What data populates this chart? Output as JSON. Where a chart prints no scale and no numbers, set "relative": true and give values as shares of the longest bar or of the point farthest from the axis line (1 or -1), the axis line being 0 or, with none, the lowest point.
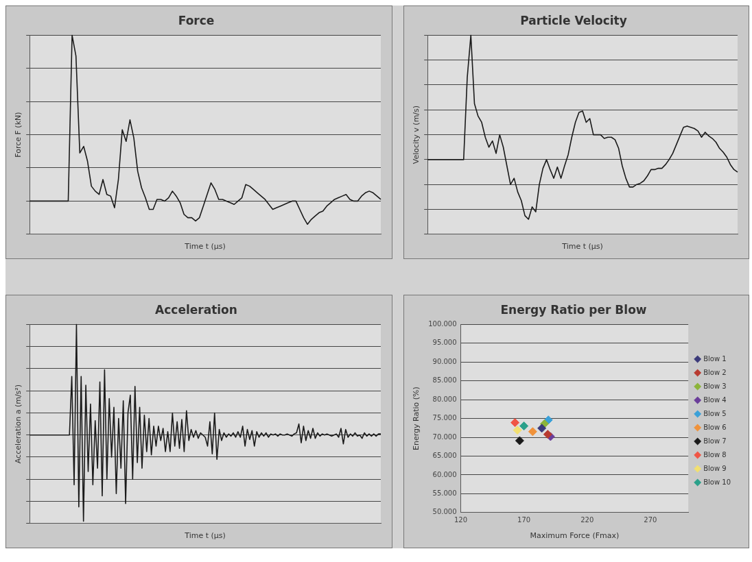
{
  "chart_data": [
    {
      "type": "line",
      "title": "Force",
      "xlabel": "Time t (μs)",
      "ylabel": "Force F (kN)",
      "relative": true,
      "grid": "y",
      "marker": "none",
      "line_style": "solid",
      "tick_labels": false,
      "categories": [
        null,
        null,
        null,
        null,
        null,
        null,
        null,
        null,
        null,
        null,
        null,
        null,
        null,
        null,
        null,
        null,
        null,
        null,
        null,
        null,
        null,
        null,
        null,
        null,
        null,
        null,
        null,
        null,
        null,
        null,
        null,
        null,
        null,
        null,
        null,
        null,
        null,
        null,
        null,
        null,
        null,
        null,
        null,
        null,
        null,
        null,
        null,
        null,
        null,
        null,
        null,
        null,
        null,
        null,
        null,
        null,
        null,
        null,
        null,
        null,
        null,
        null,
        null,
        null,
        null,
        null,
        null,
        null,
        null,
        null,
        null,
        null,
        null,
        null,
        null,
        null,
        null,
        null,
        null,
        null,
        null,
        null,
        null,
        null,
        null,
        null,
        null,
        null,
        null,
        null,
        null,
        null
      ],
      "series": [
        {
          "color": "#1a1a1a",
          "values": [
            0,
            0,
            0,
            0,
            0,
            0,
            0,
            0,
            0,
            0,
            0,
            1.0,
            0.875,
            0.29,
            0.33,
            0.24,
            0.09,
            0.06,
            0.04,
            0.13,
            0.04,
            0.03,
            -0.04,
            0.13,
            0.43,
            0.36,
            0.49,
            0.38,
            0.18,
            0.08,
            0.02,
            -0.05,
            -0.05,
            0.01,
            0.01,
            0,
            0.02,
            0.06,
            0.03,
            -0.01,
            -0.08,
            -0.1,
            -0.1,
            -0.12,
            -0.1,
            -0.03,
            0.04,
            0.11,
            0.07,
            0.01,
            0.01,
            0,
            -0.01,
            -0.02,
            0,
            0.02,
            0.1,
            0.09,
            0.07,
            0.05,
            0.03,
            0.01,
            -0.02,
            -0.05,
            -0.04,
            -0.03,
            -0.02,
            -0.01,
            0,
            0,
            -0.05,
            -0.1,
            -0.14,
            -0.11,
            -0.09,
            -0.07,
            -0.06,
            -0.03,
            -0.01,
            0.01,
            0.02,
            0.03,
            0.04,
            0.01,
            0,
            0,
            0.03,
            0.05,
            0.06,
            0.05,
            0.03,
            0.01
          ]
        }
      ]
    },
    {
      "type": "line",
      "title": "Particle Velocity",
      "xlabel": "Time t (μs)",
      "ylabel": "Velocity v (m/s)",
      "relative": true,
      "grid": "y",
      "marker": "none",
      "line_style": "solid",
      "tick_labels": false,
      "categories": [
        null,
        null,
        null,
        null,
        null,
        null,
        null,
        null,
        null,
        null,
        null,
        null,
        null,
        null,
        null,
        null,
        null,
        null,
        null,
        null,
        null,
        null,
        null,
        null,
        null,
        null,
        null,
        null,
        null,
        null,
        null,
        null,
        null,
        null,
        null,
        null,
        null,
        null,
        null,
        null,
        null,
        null,
        null,
        null,
        null,
        null,
        null,
        null,
        null,
        null,
        null,
        null,
        null,
        null,
        null,
        null,
        null,
        null,
        null,
        null,
        null,
        null,
        null,
        null,
        null,
        null,
        null,
        null,
        null,
        null,
        null,
        null,
        null,
        null,
        null,
        null,
        null,
        null,
        null,
        null,
        null,
        null,
        null,
        null,
        null,
        null,
        null
      ],
      "series": [
        {
          "color": "#1a1a1a",
          "values": [
            0,
            0,
            0,
            0,
            0,
            0,
            0,
            0,
            0,
            0,
            0,
            0.66,
            1.0,
            0.45,
            0.35,
            0.3,
            0.18,
            0.1,
            0.15,
            0.05,
            0.2,
            0.1,
            -0.05,
            -0.2,
            -0.15,
            -0.26,
            -0.33,
            -0.45,
            -0.48,
            -0.38,
            -0.42,
            -0.2,
            -0.07,
            0,
            -0.08,
            -0.15,
            -0.06,
            -0.15,
            -0.05,
            0.04,
            0.18,
            0.3,
            0.38,
            0.39,
            0.3,
            0.33,
            0.2,
            0.2,
            0.2,
            0.17,
            0.18,
            0.18,
            0.16,
            0.09,
            -0.05,
            -0.15,
            -0.22,
            -0.22,
            -0.2,
            -0.19,
            -0.17,
            -0.13,
            -0.08,
            -0.08,
            -0.07,
            -0.07,
            -0.04,
            0,
            0.05,
            0.12,
            0.19,
            0.26,
            0.27,
            0.26,
            0.25,
            0.23,
            0.18,
            0.22,
            0.19,
            0.17,
            0.14,
            0.09,
            0.06,
            0.02,
            -0.04,
            -0.08,
            -0.1
          ]
        }
      ]
    },
    {
      "type": "line",
      "title": "Acceleration",
      "xlabel": "Time t (μs)",
      "ylabel": "Acceleration a (m/s²)",
      "relative": true,
      "grid": "y",
      "marker": "none",
      "line_style": "solid",
      "tick_labels": false,
      "categories": [
        null,
        null,
        null,
        null,
        null,
        null,
        null,
        null,
        null,
        null,
        null,
        null,
        null,
        null,
        null,
        null,
        null,
        null,
        null,
        null,
        null,
        null,
        null,
        null,
        null,
        null,
        null,
        null,
        null,
        null,
        null,
        null,
        null,
        null,
        null,
        null,
        null,
        null,
        null,
        null,
        null,
        null,
        null,
        null,
        null,
        null,
        null,
        null,
        null,
        null,
        null,
        null,
        null,
        null,
        null,
        null,
        null,
        null,
        null,
        null,
        null,
        null,
        null,
        null,
        null,
        null,
        null,
        null,
        null,
        null,
        null,
        null,
        null,
        null,
        null,
        null,
        null,
        null,
        null,
        null,
        null,
        null,
        null,
        null,
        null,
        null,
        null,
        null,
        null,
        null,
        null,
        null,
        null,
        null,
        null,
        null,
        null,
        null,
        null,
        null,
        null,
        null,
        null,
        null,
        null,
        null,
        null,
        null,
        null,
        null,
        null,
        null,
        null,
        null,
        null,
        null,
        null,
        null,
        null,
        null,
        null,
        null,
        null,
        null,
        null,
        null,
        null,
        null,
        null,
        null,
        null,
        null,
        null,
        null,
        null,
        null,
        null,
        null,
        null,
        null,
        null,
        null,
        null,
        null,
        null,
        null,
        null,
        null,
        null,
        null,
        null
      ],
      "series": [
        {
          "color": "#1a1a1a",
          "values": [
            0,
            0,
            0,
            0,
            0,
            0,
            0,
            0,
            0,
            0,
            0,
            0,
            0,
            0,
            0,
            0,
            0,
            0,
            0.53,
            -0.45,
            1.0,
            -0.65,
            0.53,
            -0.78,
            0.45,
            -0.33,
            0.28,
            -0.45,
            0.13,
            -0.3,
            0.48,
            -0.55,
            0.59,
            -0.4,
            0.33,
            -0.2,
            0.25,
            -0.53,
            0.15,
            -0.3,
            0.31,
            -0.62,
            0.2,
            0.36,
            -0.4,
            0.44,
            -0.25,
            0.25,
            -0.3,
            0.18,
            -0.15,
            0.15,
            -0.18,
            0.08,
            -0.1,
            0.08,
            -0.05,
            0.06,
            -0.15,
            0.03,
            -0.15,
            0.2,
            -0.1,
            0.12,
            -0.12,
            0.14,
            -0.15,
            0.22,
            -0.05,
            0.05,
            -0.02,
            0.04,
            -0.03,
            0.02,
            0,
            -0.02,
            -0.1,
            0.12,
            -0.17,
            0.2,
            -0.22,
            0.05,
            -0.05,
            0.02,
            -0.02,
            0.01,
            -0.01,
            0.02,
            -0.02,
            0.03,
            -0.02,
            0.08,
            -0.1,
            0.05,
            -0.04,
            0.04,
            -0.1,
            0.03,
            -0.02,
            0.02,
            -0.01,
            0.02,
            -0.02,
            0.01,
            0,
            0.01,
            -0.01,
            0.01,
            0,
            0,
            0.01,
            0,
            -0.01,
            0.01,
            0.02,
            0.1,
            -0.07,
            0.08,
            -0.05,
            0.04,
            -0.03,
            0.06,
            -0.03,
            0.02,
            -0.01,
            0.01,
            0,
            0.01,
            0,
            -0.01,
            0,
            0.01,
            -0.02,
            0.06,
            -0.08,
            0.05,
            -0.02,
            0.01,
            -0.01,
            0.02,
            -0.01,
            0,
            -0.03,
            0.02,
            -0.01,
            0.01,
            -0.01,
            0.01,
            -0.01,
            0.01,
            0.01
          ]
        }
      ]
    },
    {
      "type": "scatter",
      "title": "Energy Ratio per Blow",
      "xlabel": "Maximum Force (Fmax)",
      "ylabel": "Energy Ratio (%)",
      "grid": "y",
      "legend": "right",
      "marker": "diamond",
      "xlim": [
        120,
        300
      ],
      "xticks": [
        120,
        170,
        220,
        270
      ],
      "ylim": [
        50,
        100
      ],
      "yticks": [
        {
          "value": 50,
          "label": "50.000"
        },
        {
          "value": 55,
          "label": "55.000"
        },
        {
          "value": 60,
          "label": "60.000"
        },
        {
          "value": 65,
          "label": "65.000"
        },
        {
          "value": 70,
          "label": "70.000"
        },
        {
          "value": 75,
          "label": "75.000"
        },
        {
          "value": 80,
          "label": "80.000"
        },
        {
          "value": 85,
          "label": "85.000"
        },
        {
          "value": 90,
          "label": "90.000"
        },
        {
          "value": 95,
          "label": "95.000"
        },
        {
          "value": 100,
          "label": "100.000"
        }
      ],
      "series": [
        {
          "name": "Blow 1",
          "color": "#3b3a7a",
          "x": [
            184.1
          ],
          "values": [
            72.4
          ]
        },
        {
          "name": "Blow 2",
          "color": "#b83a30",
          "x": [
            188.8
          ],
          "values": [
            70.8
          ]
        },
        {
          "name": "Blow 3",
          "color": "#8cb43a",
          "x": [
            186.2
          ],
          "values": [
            73.6
          ]
        },
        {
          "name": "Blow 4",
          "color": "#6a3d9a",
          "x": [
            191.0
          ],
          "values": [
            70.2
          ]
        },
        {
          "name": "Blow 5",
          "color": "#3aa0d8",
          "x": [
            189.3
          ],
          "values": [
            74.6
          ]
        },
        {
          "name": "Blow 6",
          "color": "#f0923a",
          "x": [
            176.9
          ],
          "values": [
            71.5
          ]
        },
        {
          "name": "Blow 7",
          "color": "#1a1a1a",
          "x": [
            166.6
          ],
          "values": [
            69.1
          ]
        },
        {
          "name": "Blow 8",
          "color": "#f05545",
          "x": [
            162.9
          ],
          "values": [
            73.9
          ]
        },
        {
          "name": "Blow 9",
          "color": "#f2e070",
          "x": [
            164.8
          ],
          "values": [
            71.9
          ]
        },
        {
          "name": "Blow 10",
          "color": "#2aa08a",
          "x": [
            170.0
          ],
          "values": [
            73.0
          ]
        }
      ]
    }
  ]
}
